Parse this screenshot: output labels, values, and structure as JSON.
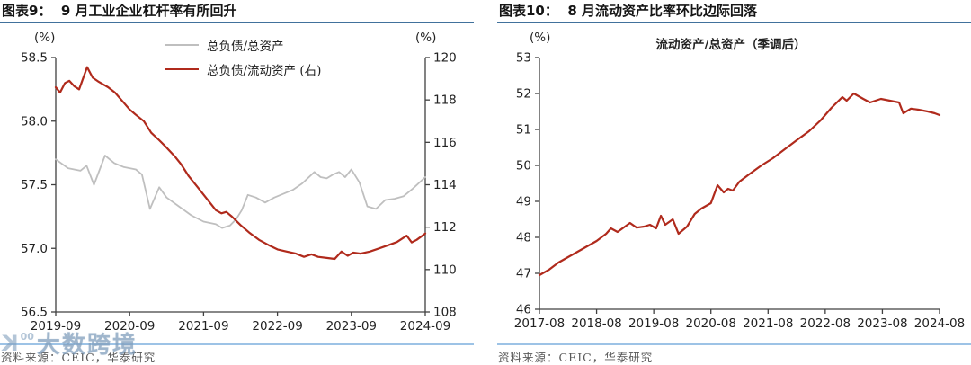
{
  "watermark": {
    "logo_icon": "k-circle-logo",
    "sup": "00",
    "text": "大数跨境"
  },
  "source_note": "资料来源：CEIC，华泰研究",
  "colors": {
    "red_line": "#B02A1C",
    "gray_line": "#BFBFBF",
    "header_underline": "#41719C",
    "separator_line": "#9DC3E6",
    "axis": "#404040"
  },
  "chart_data": [
    {
      "type": "line",
      "title": "图表9：  9 月工业企业杠杆率有所回升",
      "source": "资料来源：CEIC，华泰研究",
      "x_domain": [
        0,
        60
      ],
      "x_tick_labels": [
        "2019-09",
        "2020-09",
        "2021-09",
        "2022-09",
        "2023-09",
        "2024-09"
      ],
      "left_axis": {
        "unit": "(%)",
        "min": 56.5,
        "max": 58.5,
        "tick_labels": [
          "58.5",
          "58.0",
          "57.5",
          "57.0",
          "56.5"
        ],
        "ticks": [
          58.5,
          58.0,
          57.5,
          57.0,
          56.5
        ]
      },
      "right_axis": {
        "unit": "(%)",
        "min": 108,
        "max": 120,
        "tick_labels": [
          "120",
          "118",
          "116",
          "114",
          "112",
          "110",
          "108"
        ],
        "ticks": [
          120,
          118,
          116,
          114,
          112,
          110,
          108
        ]
      },
      "legend": [
        {
          "label": "总负债/总资产",
          "color": "#BFBFBF"
        },
        {
          "label": "总负债/流动资产 (右)",
          "color": "#B02A1C"
        }
      ],
      "series": [
        {
          "name": "总负债/总资产",
          "axis": "left",
          "color": "#BFBFBF",
          "width": 1.8,
          "points": [
            [
              0,
              57.7
            ],
            [
              2,
              57.63
            ],
            [
              4,
              57.61
            ],
            [
              5,
              57.65
            ],
            [
              6.2,
              57.5
            ],
            [
              8,
              57.73
            ],
            [
              9.5,
              57.67
            ],
            [
              11,
              57.64
            ],
            [
              13,
              57.62
            ],
            [
              14,
              57.58
            ],
            [
              15.3,
              57.31
            ],
            [
              16.8,
              57.48
            ],
            [
              18,
              57.4
            ],
            [
              20,
              57.33
            ],
            [
              22,
              57.26
            ],
            [
              24,
              57.21
            ],
            [
              26,
              57.19
            ],
            [
              27,
              57.16
            ],
            [
              28.3,
              57.18
            ],
            [
              29.3,
              57.23
            ],
            [
              30.2,
              57.3
            ],
            [
              31.2,
              57.42
            ],
            [
              32.5,
              57.4
            ],
            [
              34,
              57.36
            ],
            [
              35.5,
              57.4
            ],
            [
              37,
              57.43
            ],
            [
              38.5,
              57.46
            ],
            [
              40,
              57.51
            ],
            [
              42,
              57.6
            ],
            [
              43,
              57.56
            ],
            [
              44,
              57.55
            ],
            [
              45,
              57.58
            ],
            [
              46,
              57.6
            ],
            [
              47,
              57.56
            ],
            [
              48,
              57.62
            ],
            [
              49.3,
              57.52
            ],
            [
              50.6,
              57.33
            ],
            [
              52,
              57.31
            ],
            [
              53.5,
              57.38
            ],
            [
              55,
              57.39
            ],
            [
              56.5,
              57.41
            ],
            [
              58,
              57.47
            ],
            [
              60,
              57.56
            ]
          ]
        },
        {
          "name": "总负债/流动资产 (右)",
          "axis": "right",
          "color": "#B02A1C",
          "width": 2.2,
          "points": [
            [
              0,
              118.6
            ],
            [
              0.7,
              118.35
            ],
            [
              1.5,
              118.8
            ],
            [
              2.2,
              118.9
            ],
            [
              3,
              118.65
            ],
            [
              3.8,
              118.5
            ],
            [
              5.1,
              119.55
            ],
            [
              6,
              119.05
            ],
            [
              7,
              118.85
            ],
            [
              8.5,
              118.6
            ],
            [
              9.6,
              118.35
            ],
            [
              10.8,
              117.95
            ],
            [
              12,
              117.55
            ],
            [
              13,
              117.3
            ],
            [
              14.3,
              117.0
            ],
            [
              15.5,
              116.45
            ],
            [
              16.8,
              116.1
            ],
            [
              18,
              115.75
            ],
            [
              19.3,
              115.35
            ],
            [
              20.4,
              114.95
            ],
            [
              21.6,
              114.4
            ],
            [
              23,
              113.9
            ],
            [
              24.5,
              113.35
            ],
            [
              26,
              112.8
            ],
            [
              26.9,
              112.65
            ],
            [
              27.7,
              112.72
            ],
            [
              28.6,
              112.5
            ],
            [
              30,
              112.1
            ],
            [
              31.4,
              111.75
            ],
            [
              33,
              111.4
            ],
            [
              34.6,
              111.15
            ],
            [
              36,
              110.95
            ],
            [
              37.5,
              110.85
            ],
            [
              39,
              110.75
            ],
            [
              40.3,
              110.6
            ],
            [
              41.5,
              110.72
            ],
            [
              42.6,
              110.6
            ],
            [
              44,
              110.55
            ],
            [
              45.3,
              110.5
            ],
            [
              46.4,
              110.85
            ],
            [
              47.4,
              110.65
            ],
            [
              48.3,
              110.8
            ],
            [
              49.5,
              110.75
            ],
            [
              51,
              110.85
            ],
            [
              52.5,
              111.0
            ],
            [
              54,
              111.15
            ],
            [
              55.4,
              111.3
            ],
            [
              57,
              111.6
            ],
            [
              57.8,
              111.28
            ],
            [
              58.6,
              111.4
            ],
            [
              59.3,
              111.55
            ],
            [
              60,
              111.7
            ]
          ]
        }
      ]
    },
    {
      "type": "line",
      "title": "图表10：  8 月流动资产比率环比边际回落",
      "inner_title": "流动资产/总资产（季调后）",
      "source": "资料来源：CEIC，华泰研究",
      "x_domain": [
        0,
        84
      ],
      "x_tick_labels": [
        "2017-08",
        "2018-08",
        "2019-08",
        "2020-08",
        "2021-08",
        "2022-08",
        "2023-08",
        "2024-08"
      ],
      "y_axis": {
        "unit": "(%)",
        "min": 46,
        "max": 53,
        "tick_labels": [
          "53",
          "52",
          "51",
          "50",
          "49",
          "48",
          "47",
          "46"
        ],
        "ticks": [
          53,
          52,
          51,
          50,
          49,
          48,
          47,
          46
        ]
      },
      "series": [
        {
          "name": "流动资产/总资产（季调后）",
          "axis": "y",
          "color": "#B02A1C",
          "width": 2.2,
          "points": [
            [
              0,
              46.95
            ],
            [
              2,
              47.1
            ],
            [
              4,
              47.3
            ],
            [
              6,
              47.45
            ],
            [
              8,
              47.6
            ],
            [
              10,
              47.75
            ],
            [
              12,
              47.9
            ],
            [
              14,
              48.1
            ],
            [
              15,
              48.25
            ],
            [
              16.4,
              48.15
            ],
            [
              19,
              48.4
            ],
            [
              20.4,
              48.27
            ],
            [
              22,
              48.3
            ],
            [
              23.2,
              48.35
            ],
            [
              24.5,
              48.25
            ],
            [
              25.5,
              48.6
            ],
            [
              26.4,
              48.35
            ],
            [
              28,
              48.5
            ],
            [
              29.2,
              48.1
            ],
            [
              31,
              48.3
            ],
            [
              32.6,
              48.65
            ],
            [
              34,
              48.8
            ],
            [
              36,
              48.95
            ],
            [
              37.4,
              49.45
            ],
            [
              38.7,
              49.25
            ],
            [
              39.6,
              49.35
            ],
            [
              40.6,
              49.3
            ],
            [
              42,
              49.55
            ],
            [
              44,
              49.75
            ],
            [
              46.6,
              50.0
            ],
            [
              49,
              50.2
            ],
            [
              51.5,
              50.45
            ],
            [
              54,
              50.7
            ],
            [
              56.6,
              50.95
            ],
            [
              59,
              51.25
            ],
            [
              61.3,
              51.6
            ],
            [
              63.6,
              51.9
            ],
            [
              64.5,
              51.8
            ],
            [
              66,
              52.0
            ],
            [
              68,
              51.85
            ],
            [
              69.4,
              51.75
            ],
            [
              71.7,
              51.85
            ],
            [
              73.6,
              51.8
            ],
            [
              75.5,
              51.75
            ],
            [
              76.4,
              51.45
            ],
            [
              78,
              51.58
            ],
            [
              79.6,
              51.55
            ],
            [
              81.5,
              51.5
            ],
            [
              83,
              51.45
            ],
            [
              84,
              51.4
            ]
          ]
        }
      ]
    }
  ]
}
